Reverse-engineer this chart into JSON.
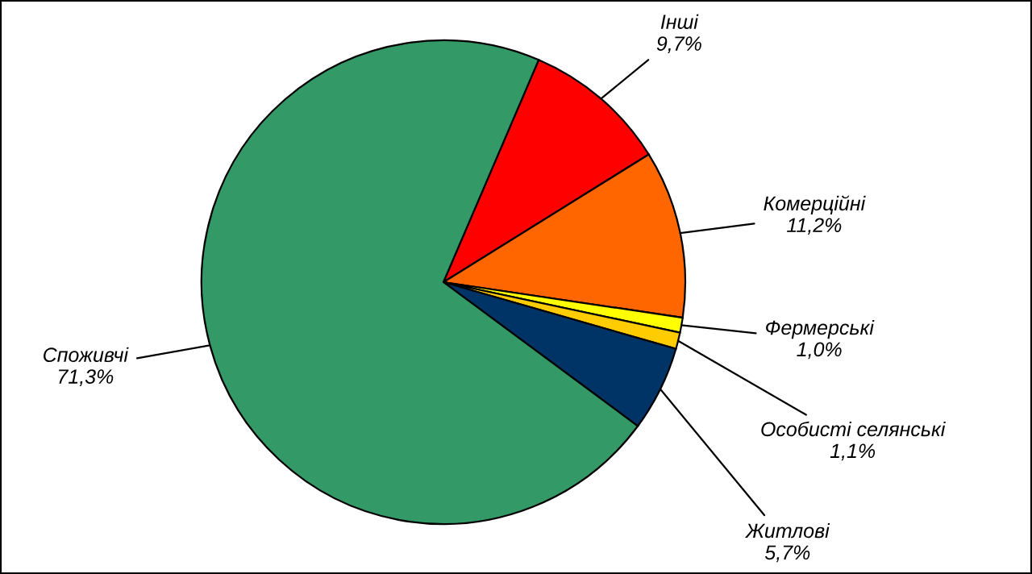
{
  "chart_data": {
    "type": "pie",
    "categories": [
      "Інші",
      "Комерційні",
      "Фермерські",
      "Особисті селянські",
      "Житлові",
      "Споживчі"
    ],
    "values": [
      9.7,
      11.2,
      1.0,
      1.1,
      5.7,
      71.3
    ],
    "value_labels": [
      "9,7%",
      "11,2%",
      "1,0%",
      "1,1%",
      "5,7%",
      "71,3%"
    ],
    "colors": [
      "#ff0000",
      "#ff6600",
      "#ffff00",
      "#ffcc00",
      "#003366",
      "#339966"
    ],
    "legend": false
  }
}
